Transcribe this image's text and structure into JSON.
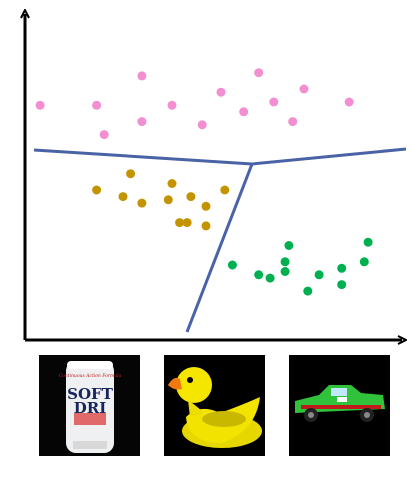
{
  "colors": {
    "axis": "#000000",
    "boundary": "#4a62a6",
    "cluster_top": "#f28fd0",
    "cluster_left": "#c49400",
    "cluster_right": "#00b050"
  },
  "clusters": [
    {
      "name": "top",
      "color_key": "cluster_top",
      "points": [
        [
          0.04,
          0.72
        ],
        [
          0.19,
          0.72
        ],
        [
          0.21,
          0.63
        ],
        [
          0.31,
          0.81
        ],
        [
          0.31,
          0.67
        ],
        [
          0.39,
          0.72
        ],
        [
          0.47,
          0.66
        ],
        [
          0.52,
          0.76
        ],
        [
          0.58,
          0.7
        ],
        [
          0.62,
          0.82
        ],
        [
          0.66,
          0.73
        ],
        [
          0.71,
          0.67
        ],
        [
          0.74,
          0.77
        ],
        [
          0.86,
          0.73
        ]
      ]
    },
    {
      "name": "left",
      "color_key": "cluster_left",
      "points": [
        [
          0.19,
          0.46
        ],
        [
          0.26,
          0.44
        ],
        [
          0.28,
          0.51
        ],
        [
          0.31,
          0.42
        ],
        [
          0.38,
          0.43
        ],
        [
          0.39,
          0.48
        ],
        [
          0.41,
          0.36
        ],
        [
          0.43,
          0.36
        ],
        [
          0.44,
          0.44
        ],
        [
          0.48,
          0.41
        ],
        [
          0.53,
          0.46
        ],
        [
          0.48,
          0.35
        ]
      ]
    },
    {
      "name": "right",
      "color_key": "cluster_right",
      "points": [
        [
          0.55,
          0.23
        ],
        [
          0.62,
          0.2
        ],
        [
          0.65,
          0.19
        ],
        [
          0.69,
          0.21
        ],
        [
          0.69,
          0.24
        ],
        [
          0.7,
          0.29
        ],
        [
          0.75,
          0.15
        ],
        [
          0.78,
          0.2
        ],
        [
          0.84,
          0.17
        ],
        [
          0.84,
          0.22
        ],
        [
          0.9,
          0.24
        ],
        [
          0.91,
          0.3
        ]
      ]
    }
  ],
  "thumbnails": [
    {
      "name": "deodorant-stick",
      "label_lines": [
        "SOFT",
        "DRI"
      ],
      "tagline": "Continuous Action Formula"
    },
    {
      "name": "rubber-duck"
    },
    {
      "name": "toy-car"
    }
  ]
}
